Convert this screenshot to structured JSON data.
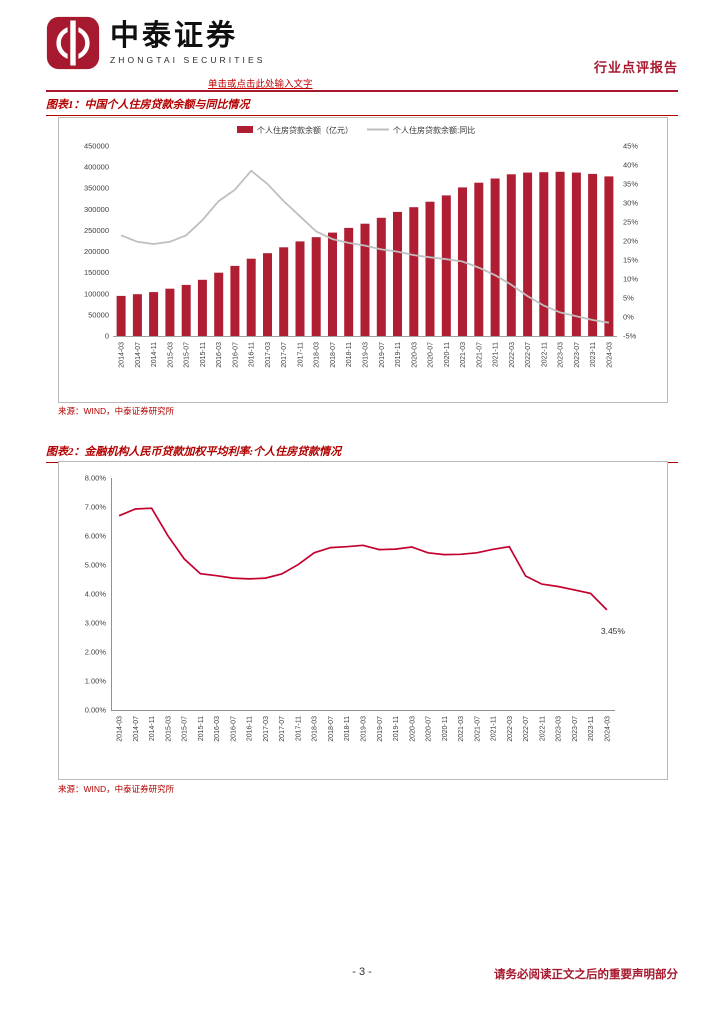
{
  "header": {
    "logo_cn": "中泰证券",
    "logo_en": "ZHONGTAI SECURITIES",
    "report_type": "行业点评报告",
    "placeholder_note": "单击或点击此处输入文字"
  },
  "figures": {
    "fig1": {
      "title": "图表1：中国个人住房贷款余额与同比情况",
      "source": "来源：WIND，中泰证券研究所"
    },
    "fig2": {
      "title": "图表2：金融机构人民币贷款加权平均利率:个人住房贷款情况",
      "source": "来源：WIND，中泰证券研究所"
    }
  },
  "footer": {
    "page_number": "- 3 -",
    "disclaimer": "请务必阅读正文之后的重要声明部分"
  },
  "colors": {
    "brand_red": "#a6192e",
    "figure_title_red": "#b30000",
    "bar_red": "#b01e33",
    "yoy_line_gray": "#bfbfbf",
    "rate_line_red": "#c4002f"
  },
  "chart_data": [
    {
      "type": "bar",
      "title": "中国个人住房贷款余额与同比情况",
      "legend_position": "top",
      "categories": [
        "2014-03",
        "2014-07",
        "2014-11",
        "2015-03",
        "2015-07",
        "2015-11",
        "2016-03",
        "2016-07",
        "2016-11",
        "2017-03",
        "2017-07",
        "2017-11",
        "2018-03",
        "2018-07",
        "2018-11",
        "2019-03",
        "2019-07",
        "2019-11",
        "2020-03",
        "2020-07",
        "2020-11",
        "2021-03",
        "2021-07",
        "2021-11",
        "2022-03",
        "2022-07",
        "2022-11",
        "2023-03",
        "2023-07",
        "2023-11",
        "2024-03"
      ],
      "series": [
        {
          "name": "个人住房贷款余额（亿元）",
          "type": "bar",
          "axis": "left",
          "color": "#b01e33",
          "values": [
            95000,
            99000,
            104000,
            112000,
            121000,
            133000,
            150000,
            166000,
            183000,
            196000,
            210000,
            224000,
            234000,
            245000,
            256000,
            266000,
            280000,
            294000,
            305000,
            318000,
            333000,
            352000,
            363000,
            373000,
            383000,
            387000,
            388000,
            389000,
            387000,
            384000,
            378000
          ]
        },
        {
          "name": "个人住房贷款余额:同比",
          "type": "line",
          "axis": "right",
          "color": "#bfbfbf",
          "values": [
            21.5,
            19.8,
            19.2,
            19.8,
            21.5,
            25.5,
            30.5,
            33.5,
            38.5,
            35.0,
            30.5,
            26.5,
            22.5,
            20.5,
            19.5,
            18.8,
            17.8,
            17.2,
            16.3,
            15.7,
            15.2,
            14.6,
            13.0,
            11.0,
            8.5,
            5.5,
            3.0,
            1.2,
            0.2,
            -0.8,
            -1.5
          ]
        }
      ],
      "left_axis": {
        "min": 0,
        "max": 450000,
        "step": 50000
      },
      "right_axis": {
        "min": -5,
        "max": 45,
        "step": 5,
        "unit": "%"
      }
    },
    {
      "type": "line",
      "title": "金融机构人民币贷款加权平均利率:个人住房贷款情况",
      "categories": [
        "2014-03",
        "2014-07",
        "2014-11",
        "2015-03",
        "2015-07",
        "2015-11",
        "2016-03",
        "2016-07",
        "2016-11",
        "2017-03",
        "2017-07",
        "2017-11",
        "2018-03",
        "2018-07",
        "2018-11",
        "2019-03",
        "2019-07",
        "2019-11",
        "2020-03",
        "2020-07",
        "2020-11",
        "2021-03",
        "2021-07",
        "2021-11",
        "2022-03",
        "2022-07",
        "2022-11",
        "2023-03",
        "2023-07",
        "2023-11",
        "2024-03"
      ],
      "series": [
        {
          "name": "个人住房贷款加权平均利率",
          "color": "#c4002f",
          "values": [
            6.7,
            6.93,
            6.96,
            6.01,
            5.21,
            4.7,
            4.63,
            4.55,
            4.52,
            4.55,
            4.69,
            5.01,
            5.42,
            5.6,
            5.63,
            5.68,
            5.53,
            5.55,
            5.62,
            5.42,
            5.36,
            5.37,
            5.42,
            5.54,
            5.63,
            4.62,
            4.34,
            4.26,
            4.14,
            4.02,
            3.45
          ]
        }
      ],
      "y_axis": {
        "min": 0,
        "max": 8,
        "step": 1,
        "format": "0.00%"
      },
      "annotation": {
        "text": "3.45%",
        "at_index": 30
      }
    }
  ]
}
